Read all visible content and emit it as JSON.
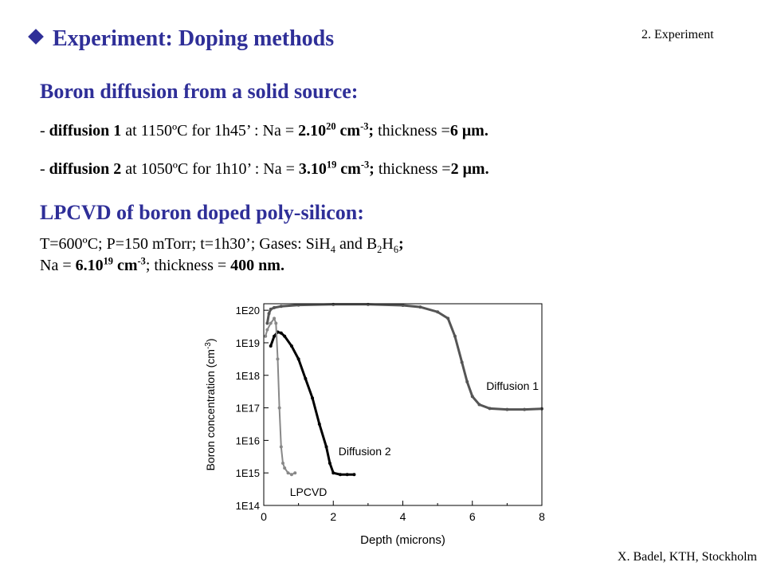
{
  "slide": {
    "title": "Experiment: Doping methods",
    "section_tag": "2. Experiment",
    "footer": "X. Badel, KTH, Stockholm"
  },
  "boron_diffusion": {
    "heading": "Boron diffusion from a solid source:",
    "items": [
      {
        "dash": "- ",
        "name": "diffusion 1",
        "cond": " at 1150ºC for 1h45’ : Na = ",
        "na_base": "2.10",
        "na_exp": "20",
        "unit": " cm",
        "unit_exp": "-3",
        "semi": ";",
        "thk_label": " thickness =",
        "thk_val": "6 ",
        "mu": "μ",
        "thk_unit": "m."
      },
      {
        "dash": "- ",
        "name": "diffusion 2",
        "cond": " at 1050ºC for 1h10’ : Na = ",
        "na_base": "3.10",
        "na_exp": "19",
        "unit": " cm",
        "unit_exp": "-3",
        "semi": ";",
        "thk_label": " thickness =",
        "thk_val": "2 ",
        "mu": "μ",
        "thk_unit": "m."
      }
    ]
  },
  "lpcvd": {
    "heading": "LPCVD of boron doped poly-silicon:",
    "line1": {
      "a": "T=600ºC; P=150 mTorr; t=1h30’; Gases: SiH",
      "sub1": "4",
      "b": " and B",
      "sub2": "2",
      "c": "H",
      "sub3": "6",
      "d": ";"
    },
    "line2": {
      "a": "Na = ",
      "na_base": "6.10",
      "na_exp": "19",
      "unit": " cm",
      "unit_exp": "-3",
      "b": "; thickness = ",
      "val": "400 nm."
    }
  },
  "chart_data": {
    "type": "scatter",
    "xlabel": "Depth (microns)",
    "ylabel": "Boron concentration (cm-3)",
    "ylabel_parts": {
      "main": "Boron concentration (cm",
      "sup": "-3",
      "end": ")"
    },
    "xlim": [
      0,
      8
    ],
    "ylim_log10": [
      14,
      20.2
    ],
    "x_ticks": [
      "0",
      "2",
      "4",
      "6",
      "8"
    ],
    "y_ticks": [
      "1E14",
      "1E15",
      "1E16",
      "1E17",
      "1E18",
      "1E19",
      "1E20"
    ],
    "log_y": true,
    "series": [
      {
        "name": "Diffusion 1",
        "color": "#555555",
        "points": [
          [
            0.1,
            19.6
          ],
          [
            0.15,
            19.9
          ],
          [
            0.2,
            20.03
          ],
          [
            0.3,
            20.08
          ],
          [
            0.5,
            20.12
          ],
          [
            1,
            20.16
          ],
          [
            2,
            20.18
          ],
          [
            3,
            20.18
          ],
          [
            4,
            20.15
          ],
          [
            4.5,
            20.1
          ],
          [
            5,
            19.95
          ],
          [
            5.3,
            19.75
          ],
          [
            5.5,
            19.2
          ],
          [
            5.7,
            18.4
          ],
          [
            5.85,
            17.8
          ],
          [
            6,
            17.35
          ],
          [
            6.2,
            17.1
          ],
          [
            6.5,
            16.98
          ],
          [
            7,
            16.95
          ],
          [
            7.5,
            16.95
          ],
          [
            8,
            16.97
          ]
        ]
      },
      {
        "name": "Diffusion 2",
        "color": "#000000",
        "points": [
          [
            0.2,
            18.9
          ],
          [
            0.3,
            19.2
          ],
          [
            0.4,
            19.33
          ],
          [
            0.5,
            19.3
          ],
          [
            0.6,
            19.2
          ],
          [
            0.8,
            18.9
          ],
          [
            1.0,
            18.5
          ],
          [
            1.2,
            17.9
          ],
          [
            1.4,
            17.3
          ],
          [
            1.6,
            16.5
          ],
          [
            1.8,
            15.8
          ],
          [
            1.9,
            15.3
          ],
          [
            2.0,
            15.0
          ],
          [
            2.2,
            14.95
          ],
          [
            2.4,
            14.95
          ],
          [
            2.6,
            14.95
          ]
        ]
      },
      {
        "name": "LPCVD",
        "color": "#888888",
        "points": [
          [
            0.05,
            19.2
          ],
          [
            0.1,
            19.4
          ],
          [
            0.2,
            19.6
          ],
          [
            0.3,
            19.75
          ],
          [
            0.35,
            19.6
          ],
          [
            0.4,
            18.5
          ],
          [
            0.45,
            17.0
          ],
          [
            0.5,
            15.8
          ],
          [
            0.55,
            15.3
          ],
          [
            0.6,
            15.15
          ],
          [
            0.7,
            15.0
          ],
          [
            0.8,
            14.95
          ],
          [
            0.9,
            15.0
          ]
        ]
      }
    ],
    "annotations": [
      "Diffusion 1",
      "Diffusion 2",
      "LPCVD"
    ]
  }
}
